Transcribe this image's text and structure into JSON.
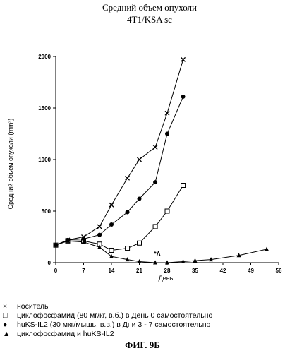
{
  "chart_data": {
    "type": "line",
    "title": "Средний объем опухоли",
    "subtitle": "4T1/KSA sc",
    "xlabel": "День",
    "ylabel": "Средний объем опухоли (mm³)",
    "xlim": [
      0,
      56
    ],
    "ylim": [
      0,
      2000
    ],
    "xticks": [
      0,
      7,
      14,
      21,
      28,
      35,
      42,
      49,
      56
    ],
    "yticks": [
      0,
      500,
      1000,
      1500,
      2000
    ],
    "series": [
      {
        "name": "носитель",
        "marker": "x",
        "x": [
          0,
          3,
          7,
          11,
          14,
          18,
          21,
          25,
          28,
          32
        ],
        "y": [
          170,
          220,
          250,
          350,
          560,
          820,
          1000,
          1120,
          1450,
          1970
        ]
      },
      {
        "name": "циклофосфамид (80 мг/кг, в.б.) в День 0 самостоятельно",
        "marker": "square",
        "x": [
          0,
          3,
          7,
          11,
          14,
          18,
          21,
          25,
          28,
          32
        ],
        "y": [
          170,
          210,
          210,
          180,
          120,
          140,
          190,
          350,
          500,
          750
        ]
      },
      {
        "name": "huKS-IL2 (30 мкг/мышь, в.в.) в Дни 3 - 7 самостоятельно",
        "marker": "circle",
        "x": [
          0,
          3,
          7,
          11,
          14,
          18,
          21,
          25,
          28,
          32
        ],
        "y": [
          170,
          220,
          230,
          270,
          370,
          490,
          620,
          780,
          1250,
          1610
        ]
      },
      {
        "name": "циклофосфамид и huKS-IL2",
        "marker": "triangle",
        "x": [
          0,
          3,
          7,
          11,
          14,
          18,
          21,
          25,
          28,
          32,
          35,
          39,
          46,
          53
        ],
        "y": [
          170,
          210,
          200,
          150,
          60,
          30,
          10,
          0,
          0,
          10,
          20,
          30,
          70,
          130
        ]
      }
    ],
    "annotations": [
      {
        "text": "*Λ",
        "x": 25.5,
        "y": 100
      }
    ],
    "grid": false,
    "legend_position": "bottom"
  },
  "legend": [
    {
      "symbol": "×",
      "marker": "x",
      "label": "носитель"
    },
    {
      "symbol": "□",
      "marker": "square",
      "label": "циклофосфамид (80 мг/кг, в.б.) в День 0 самостоятельно"
    },
    {
      "symbol": "●",
      "marker": "circle",
      "label": "huKS-IL2 (30 мкг/мышь, в.в.) в Дни 3 - 7 самостоятельно"
    },
    {
      "symbol": "▲",
      "marker": "triangle",
      "label": "циклофосфамид и huKS-IL2"
    }
  ],
  "caption": "ФИГ. 9Б"
}
